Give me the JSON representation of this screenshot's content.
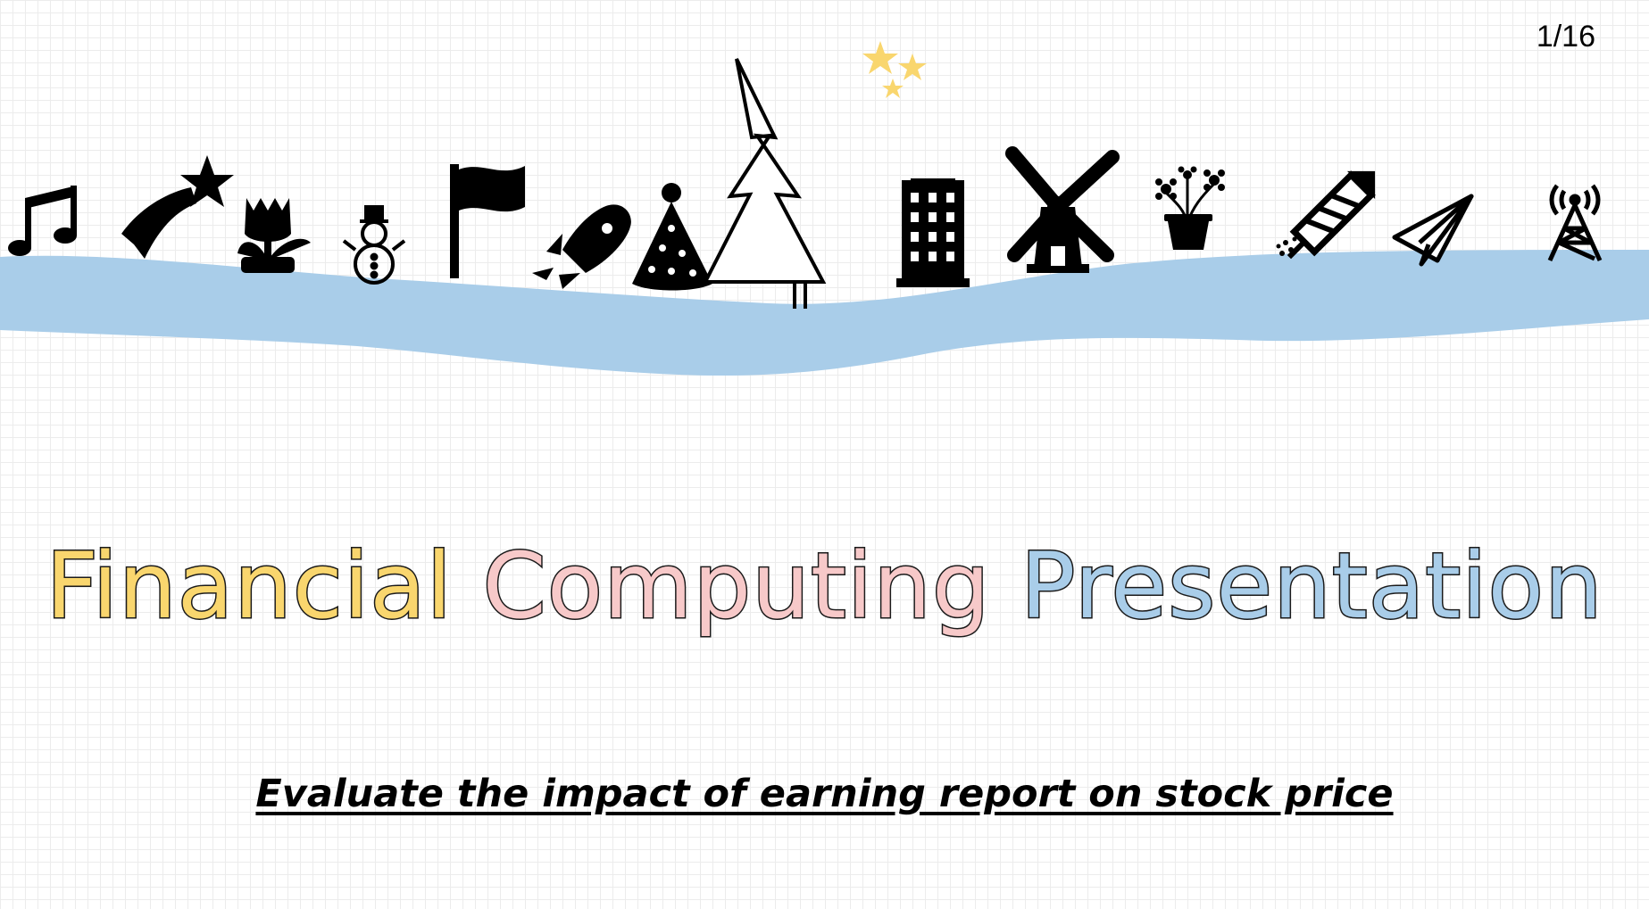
{
  "slide": {
    "page_number": "1/16",
    "title_word_1": "Financial",
    "title_word_2": "Computing",
    "title_word_3": "Presentation",
    "subtitle": "Evaluate the impact of earning report on stock price"
  },
  "colors": {
    "river": "#a9cde9",
    "title_word_1": "#f9d66e",
    "title_word_2": "#f7c9c9",
    "title_word_3": "#a9cde9",
    "stars": "#f9d66e"
  },
  "icons": [
    "music-note-icon",
    "shooting-star-icon",
    "tulip-icon",
    "snowman-icon",
    "flag-icon",
    "rocket-icon",
    "party-hat-icon",
    "pine-tree-icon",
    "stars-icon",
    "building-icon",
    "windmill-icon",
    "flower-pot-icon",
    "firework-rocket-icon",
    "paper-plane-icon",
    "radio-tower-icon"
  ]
}
